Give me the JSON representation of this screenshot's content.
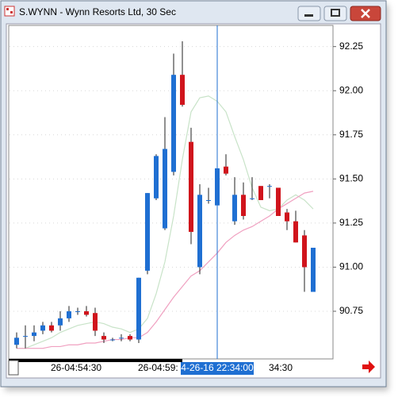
{
  "chart_data": {
    "type": "candlestick",
    "title": "S.WYNN - Wynn Resorts Ltd, 30 Sec",
    "categories": [
      null,
      null,
      null,
      null,
      "26-04:54:30",
      null,
      null,
      null,
      null,
      null,
      null,
      null,
      null,
      null,
      "26-04:59:",
      null,
      null,
      null,
      null,
      null,
      null,
      null,
      null,
      null,
      null,
      null,
      null,
      null,
      null,
      "34:30",
      null,
      null,
      null,
      null,
      null
    ],
    "open": [
      90.56,
      90.61,
      90.61,
      90.64,
      90.67,
      90.67,
      90.71,
      90.75,
      90.75,
      90.74,
      90.61,
      90.59,
      90.6,
      90.61,
      90.59,
      90.98,
      91.39,
      91.22,
      91.54,
      92.09,
      91.71,
      91.0,
      91.38,
      91.35,
      91.57,
      91.26,
      91.41,
      91.39,
      91.46,
      91.46,
      91.45,
      91.31,
      91.26,
      91.18,
      90.86
    ],
    "high": [
      90.63,
      90.67,
      90.67,
      90.69,
      90.69,
      90.75,
      90.78,
      90.77,
      90.78,
      90.77,
      90.63,
      90.6,
      90.62,
      90.62,
      90.94,
      91.42,
      91.64,
      91.85,
      92.21,
      92.28,
      91.79,
      91.47,
      91.45,
      91.73,
      91.64,
      91.51,
      91.48,
      91.51,
      91.46,
      91.47,
      91.45,
      91.33,
      91.32,
      91.21,
      91.11
    ],
    "low": [
      90.54,
      90.54,
      90.58,
      90.62,
      90.63,
      90.64,
      90.69,
      90.73,
      90.72,
      90.61,
      90.57,
      90.58,
      90.58,
      90.58,
      90.57,
      90.96,
      91.38,
      91.21,
      91.52,
      91.91,
      91.13,
      90.96,
      91.36,
      91.34,
      91.52,
      91.24,
      91.27,
      91.38,
      91.38,
      91.39,
      91.29,
      91.21,
      91.14,
      90.86,
      90.86
    ],
    "close": [
      90.6,
      90.61,
      90.63,
      90.67,
      90.64,
      90.71,
      90.75,
      90.75,
      90.73,
      90.64,
      90.59,
      90.59,
      90.6,
      90.59,
      90.94,
      91.42,
      91.63,
      91.67,
      92.09,
      91.92,
      91.2,
      91.41,
      91.38,
      91.56,
      91.53,
      91.41,
      91.29,
      91.39,
      91.38,
      91.46,
      91.29,
      91.26,
      91.14,
      91.0,
      91.11
    ],
    "up_color": "#1f6fd2",
    "down_color": "#d0141c",
    "overlays": [
      {
        "color": "#c8e3c8",
        "values": [
          90.54,
          90.54,
          90.56,
          90.58,
          90.6,
          90.63,
          90.65,
          90.67,
          90.68,
          90.69,
          90.68,
          90.66,
          90.65,
          90.63,
          90.65,
          90.71,
          90.85,
          91.03,
          91.29,
          91.61,
          91.88,
          91.96,
          91.97,
          91.94,
          91.88,
          91.74,
          91.61,
          91.45,
          91.34,
          91.32,
          91.33,
          91.38,
          91.41,
          91.38,
          91.33
        ]
      },
      {
        "color": "#f0a0c0",
        "values": [
          90.54,
          90.54,
          90.54,
          90.54,
          90.55,
          90.55,
          90.56,
          90.56,
          90.57,
          90.57,
          90.58,
          90.59,
          90.59,
          90.6,
          90.6,
          90.63,
          90.69,
          90.76,
          90.83,
          90.89,
          90.95,
          90.98,
          91.03,
          91.08,
          91.14,
          91.18,
          91.21,
          91.23,
          91.26,
          91.29,
          91.33,
          91.36,
          91.39,
          91.42,
          91.43
        ]
      }
    ],
    "ylim": [
      90.48,
      92.37
    ],
    "yticks": [
      {
        "value": 92.25,
        "label": "92.25"
      },
      {
        "value": 92.0,
        "label": "92.00"
      },
      {
        "value": 91.75,
        "label": "91.75"
      },
      {
        "value": 91.5,
        "label": "91.50"
      },
      {
        "value": 91.25,
        "label": "91.25"
      },
      {
        "value": 91.0,
        "label": "91.00"
      },
      {
        "value": 90.75,
        "label": "90.75"
      }
    ],
    "grid": true,
    "crosshair": {
      "index": 23,
      "label": "4-26-16 22:34:00",
      "color": "#1f6fd2"
    }
  }
}
